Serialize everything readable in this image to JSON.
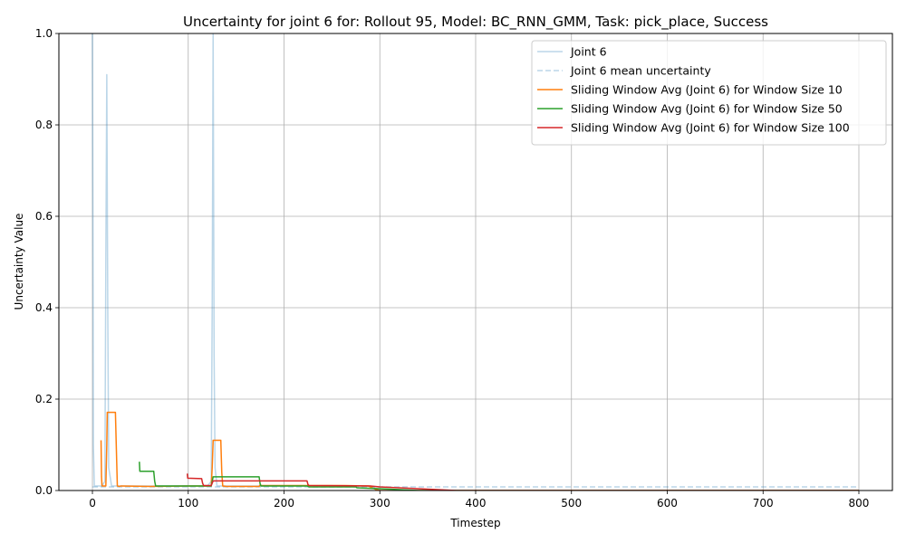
{
  "chart_data": {
    "type": "line",
    "title": "Uncertainty for joint 6 for: Rollout 95, Model: BC_RNN_GMM, Task: pick_place, Success",
    "xlabel": "Timestep",
    "ylabel": "Uncertainty Value",
    "xlim": [
      -35,
      835
    ],
    "ylim": [
      0,
      1
    ],
    "xticks": [
      0,
      100,
      200,
      300,
      400,
      500,
      600,
      700,
      800
    ],
    "yticks": [
      0.0,
      0.2,
      0.4,
      0.6,
      0.8,
      1.0
    ],
    "grid": true,
    "legend_position": "top-right",
    "series": [
      {
        "name": "Joint 6",
        "color": "#1f77b4",
        "opacity": 0.3,
        "dash": "solid",
        "x": [
          0,
          0.5,
          1,
          2,
          3,
          4,
          10,
          13,
          14,
          15,
          16,
          17,
          20,
          30,
          50,
          80,
          110,
          120,
          124,
          125,
          126,
          127,
          128,
          130,
          140,
          170,
          200,
          250,
          290,
          300,
          330,
          360,
          400,
          500,
          600,
          700,
          800
        ],
        "y": [
          1.0,
          0.6,
          0.1,
          0.01,
          0.01,
          0.01,
          0.01,
          0.02,
          0.5,
          0.91,
          0.4,
          0.05,
          0.01,
          0.01,
          0.01,
          0.01,
          0.01,
          0.01,
          0.02,
          0.4,
          1.0,
          0.3,
          0.05,
          0.01,
          0.01,
          0.01,
          0.01,
          0.01,
          0.01,
          0.0,
          0.0,
          0.0,
          0.0,
          0.0,
          0.0,
          0.0,
          0.0
        ]
      },
      {
        "name": "Joint 6 mean uncertainty",
        "color": "#1f77b4",
        "opacity": 0.3,
        "dash": "dashed",
        "x": [
          0,
          800
        ],
        "y": [
          0.008,
          0.008
        ]
      },
      {
        "name": "Sliding Window Avg (Joint 6) for Window Size 10",
        "color": "#ff7f0e",
        "opacity": 1,
        "dash": "solid",
        "x": [
          9,
          9.5,
          10,
          14,
          15,
          15.5,
          24,
          25,
          26,
          28,
          30,
          60,
          100,
          115,
          124,
          125,
          126,
          126.5,
          134,
          135,
          136,
          140,
          174,
          175,
          176,
          200,
          230,
          260,
          288,
          296,
          300,
          330,
          400,
          500,
          600,
          700,
          800
        ],
        "y": [
          0.11,
          0.03,
          0.01,
          0.01,
          0.1,
          0.171,
          0.171,
          0.09,
          0.01,
          0.009,
          0.01,
          0.009,
          0.01,
          0.01,
          0.01,
          0.05,
          0.11,
          0.11,
          0.11,
          0.04,
          0.01,
          0.009,
          0.009,
          0.012,
          0.011,
          0.011,
          0.011,
          0.011,
          0.01,
          0.002,
          0.0,
          0.0,
          0.0,
          0.0,
          0.0,
          0.0,
          0.0
        ]
      },
      {
        "name": "Sliding Window Avg (Joint 6) for Window Size 50",
        "color": "#2ca02c",
        "opacity": 1,
        "dash": "solid",
        "x": [
          49,
          49.5,
          64,
          65,
          66,
          100,
          124,
          125,
          126,
          174,
          175,
          176,
          200,
          224,
          225,
          226,
          275,
          276,
          300,
          340,
          360,
          400,
          500,
          600,
          700,
          800
        ],
        "y": [
          0.063,
          0.042,
          0.042,
          0.02,
          0.01,
          0.01,
          0.01,
          0.02,
          0.03,
          0.03,
          0.015,
          0.01,
          0.01,
          0.01,
          0.009,
          0.008,
          0.008,
          0.006,
          0.004,
          0.0,
          0.0,
          0.0,
          0.0,
          0.0,
          0.0,
          0.0
        ]
      },
      {
        "name": "Sliding Window Avg (Joint 6) for Window Size 100",
        "color": "#d62728",
        "opacity": 1,
        "dash": "solid",
        "x": [
          99,
          99.5,
          114,
          115,
          116,
          124,
          125,
          126,
          224,
          225,
          226,
          290,
          300,
          340,
          380,
          400,
          500,
          600,
          700,
          800
        ],
        "y": [
          0.037,
          0.027,
          0.026,
          0.016,
          0.011,
          0.011,
          0.016,
          0.021,
          0.021,
          0.013,
          0.011,
          0.01,
          0.008,
          0.004,
          0.0,
          0.0,
          0.0,
          0.0,
          0.0,
          0.0
        ]
      }
    ]
  }
}
